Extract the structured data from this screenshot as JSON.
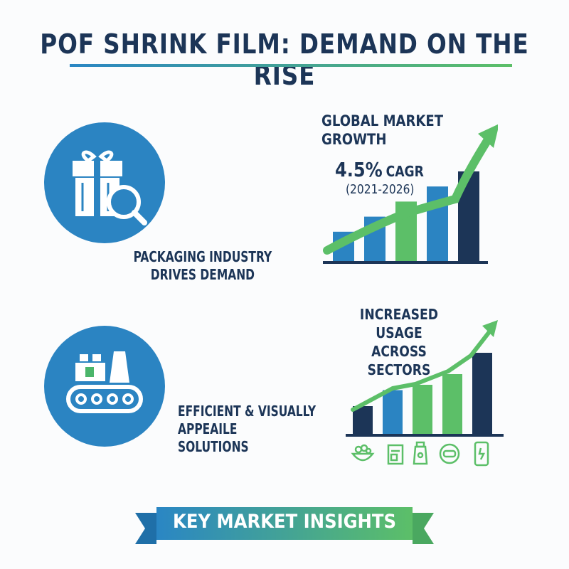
{
  "title": "POF SHRINK FILM: DEMAND ON THE RISE",
  "colors": {
    "navy": "#1c3557",
    "blue": "#2b84c2",
    "green": "#5cbf68",
    "dark_blue": "#1f4e7a"
  },
  "left_panels": [
    {
      "icon": "gift-box-magnifier-icon",
      "caption": "PACKAGING INDUSTRY\nDRIVES DEMAND"
    },
    {
      "icon": "conveyor-factory-icon",
      "caption": "EFFICIENT & VISUALLY\nAPPEAILE\nSOLUTIONS"
    }
  ],
  "growth_panel": {
    "heading": "GLOBAL MARKET\nGROWTH",
    "cagr_value": "4.5%",
    "cagr_label": "CAGR",
    "years": "(2021-2026)"
  },
  "usage_panel": {
    "heading": "INCREASED USAGE\nACROSS SECTORS",
    "sector_icons": [
      "food-bowl-icon",
      "package-box-icon",
      "cosmetic-bottle-icon",
      "consumer-goods-icon",
      "mobile-phone-icon"
    ]
  },
  "chart_data": [
    {
      "type": "bar",
      "series": [
        {
          "values": [
            1,
            2,
            3,
            4,
            5
          ]
        }
      ],
      "colors": [
        "#2b84c2",
        "#2b84c2",
        "#5cbf68",
        "#2b84c2",
        "#1c3557"
      ],
      "trend_arrow": true
    },
    {
      "type": "bar",
      "series": [
        {
          "values": [
            1,
            2.5,
            3,
            4,
            6
          ]
        }
      ],
      "colors": [
        "#1c3557",
        "#2b84c2",
        "#5cbf68",
        "#5cbf68",
        "#1c3557"
      ],
      "trend_arrow": true
    }
  ],
  "banner": {
    "label": "KEY MARKET INSIGHTS"
  }
}
